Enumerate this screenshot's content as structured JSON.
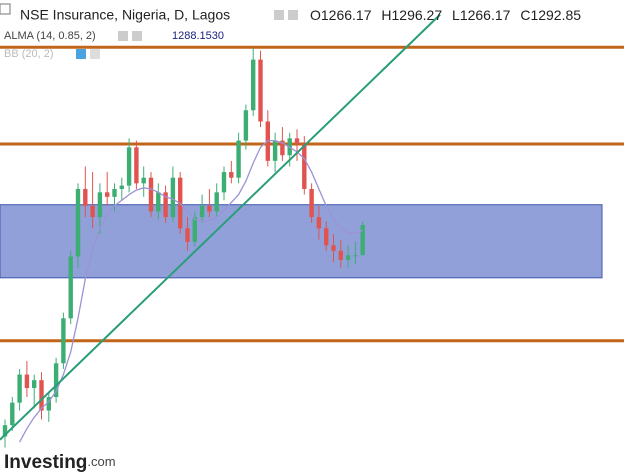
{
  "chart_data": {
    "type": "candlestick",
    "title": "NSE Insurance, Nigeria, D, Lagos",
    "ohlc_header": {
      "open_label": "O",
      "open": 1266.17,
      "high_label": "H",
      "high": 1296.27,
      "low_label": "L",
      "low": 1266.17,
      "close_label": "C",
      "close": 1292.85
    },
    "up_color": "#3cae74",
    "down_color": "#e0534f",
    "ylim": [
      1070.7,
      1493
    ],
    "open": [
      1105,
      1115,
      1135,
      1160,
      1148,
      1155,
      1128,
      1140,
      1170,
      1210,
      1265,
      1325,
      1310,
      1300,
      1322,
      1318,
      1325,
      1328,
      1362,
      1330,
      1335,
      1305,
      1322,
      1300,
      1335,
      1290,
      1278,
      1300,
      1310,
      1305,
      1322,
      1340,
      1335,
      1368,
      1395,
      1440,
      1385,
      1350,
      1368,
      1355,
      1370,
      1365,
      1325,
      1300,
      1290,
      1275,
      1270,
      1262,
      1266,
      1266.17
    ],
    "high": [
      1120,
      1140,
      1165,
      1172,
      1160,
      1162,
      1145,
      1175,
      1215,
      1270,
      1330,
      1345,
      1340,
      1330,
      1340,
      1330,
      1335,
      1370,
      1368,
      1345,
      1340,
      1330,
      1328,
      1345,
      1340,
      1300,
      1305,
      1320,
      1325,
      1330,
      1345,
      1350,
      1375,
      1400,
      1450,
      1448,
      1395,
      1375,
      1380,
      1375,
      1378,
      1372,
      1330,
      1310,
      1296,
      1285,
      1280,
      1275,
      1278,
      1296.27
    ],
    "low": [
      1095,
      1110,
      1128,
      1140,
      1130,
      1120,
      1118,
      1135,
      1165,
      1205,
      1255,
      1300,
      1290,
      1285,
      1310,
      1305,
      1315,
      1322,
      1325,
      1318,
      1300,
      1298,
      1295,
      1296,
      1285,
      1270,
      1274,
      1295,
      1300,
      1300,
      1315,
      1330,
      1330,
      1360,
      1390,
      1380,
      1345,
      1340,
      1350,
      1345,
      1350,
      1320,
      1295,
      1280,
      1270,
      1260,
      1255,
      1255,
      1258,
      1266.17
    ],
    "close": [
      1115,
      1135,
      1160,
      1148,
      1155,
      1128,
      1140,
      1170,
      1210,
      1265,
      1325,
      1310,
      1300,
      1322,
      1318,
      1325,
      1328,
      1362,
      1330,
      1335,
      1305,
      1322,
      1300,
      1335,
      1290,
      1278,
      1300,
      1310,
      1305,
      1322,
      1340,
      1335,
      1368,
      1395,
      1440,
      1385,
      1350,
      1368,
      1355,
      1370,
      1365,
      1325,
      1300,
      1290,
      1275,
      1270,
      1262,
      1266,
      1266,
      1292.85
    ],
    "alma": {
      "name": "ALMA (14, 0.85, 2)",
      "last_label": "1288.1530",
      "color": "#9d92d6",
      "values": [
        null,
        null,
        1100,
        1112,
        1122,
        1130,
        1136,
        1145,
        1160,
        1180,
        1210,
        1245,
        1272,
        1290,
        1302,
        1310,
        1315,
        1320,
        1324,
        1326,
        1325,
        1322,
        1318,
        1316,
        1312,
        1305,
        1298,
        1296,
        1297,
        1300,
        1306,
        1313,
        1320,
        1332,
        1348,
        1362,
        1368,
        1368,
        1366,
        1362,
        1358,
        1352,
        1340,
        1325,
        1310,
        1298,
        1290,
        1286,
        1286,
        1288.153
      ]
    },
    "bb": {
      "name": "BB (20, 2)"
    },
    "horizontal_levels": {
      "color": "#c0651a",
      "values": [
        1451,
        1365,
        1190
      ]
    },
    "zone": {
      "color": "#8596d4",
      "from": 1246,
      "to": 1311
    },
    "trendline": {
      "color": "#2a9d7a",
      "x": [
        -0.7,
        59.6
      ],
      "y": [
        1102,
        1480
      ]
    },
    "logo": {
      "brand": "Investing",
      "suffix": ".com"
    }
  }
}
